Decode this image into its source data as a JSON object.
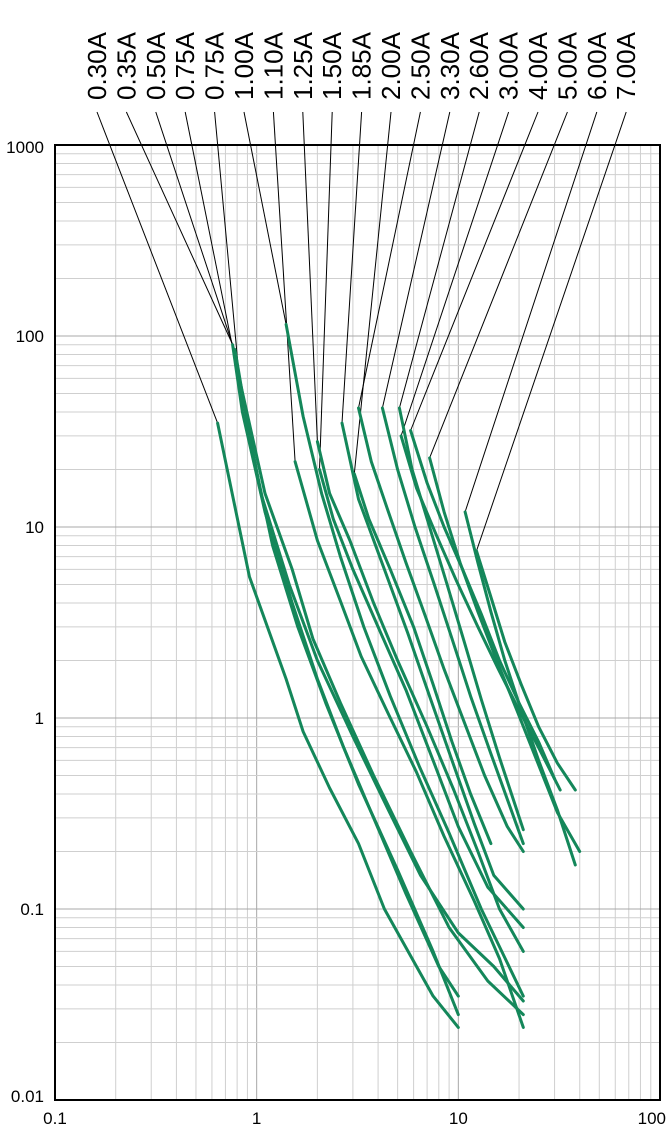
{
  "chart_data": {
    "type": "line",
    "title": "",
    "xlabel": "",
    "ylabel": "",
    "xscale": "log",
    "yscale": "log",
    "xlim": [
      0.1,
      100
    ],
    "ylim": [
      0.01,
      1000
    ],
    "grid": true,
    "x_tick_labels": [
      "0.1",
      "1",
      "10",
      "100"
    ],
    "y_tick_labels": [
      "1000",
      "100",
      "10",
      "1",
      "0.1",
      "0.01"
    ],
    "line_color": "#14875a",
    "leader_color": "#000000",
    "series": [
      {
        "name": "0.30A",
        "points": [
          [
            0.64,
            35
          ],
          [
            0.92,
            5.5
          ],
          [
            1.4,
            1.6
          ],
          [
            1.7,
            0.85
          ],
          [
            2.3,
            0.43
          ],
          [
            3.2,
            0.22
          ],
          [
            4.3,
            0.1
          ],
          [
            7.5,
            0.035
          ],
          [
            10,
            0.024
          ]
        ]
      },
      {
        "name": "0.35A",
        "points": [
          [
            0.78,
            85
          ],
          [
            0.95,
            25
          ],
          [
            1.2,
            8
          ],
          [
            1.6,
            3
          ],
          [
            2.2,
            1.2
          ],
          [
            3.2,
            0.45
          ],
          [
            5,
            0.16
          ],
          [
            7.5,
            0.06
          ],
          [
            10,
            0.028
          ]
        ]
      },
      {
        "name": "0.50A",
        "points": [
          [
            0.76,
            90
          ],
          [
            0.85,
            40
          ],
          [
            1.1,
            12
          ],
          [
            1.5,
            4
          ],
          [
            2,
            1.6
          ],
          [
            2.7,
            0.7
          ],
          [
            3.8,
            0.3
          ],
          [
            5.5,
            0.12
          ],
          [
            8,
            0.05
          ],
          [
            10,
            0.035
          ]
        ]
      },
      {
        "name": "0.75A",
        "points": [
          [
            0.83,
            55
          ],
          [
            1.05,
            15
          ],
          [
            1.45,
            5
          ],
          [
            2,
            2
          ],
          [
            3,
            0.8
          ],
          [
            4.5,
            0.33
          ],
          [
            6.5,
            0.15
          ],
          [
            10,
            0.075
          ],
          [
            15,
            0.05
          ],
          [
            21,
            0.033
          ]
        ]
      },
      {
        "name": "0.75A",
        "points": [
          [
            0.82,
            60
          ],
          [
            1.1,
            15
          ],
          [
            1.5,
            6
          ],
          [
            1.9,
            2.6
          ],
          [
            2.6,
            1.2
          ],
          [
            3.8,
            0.5
          ],
          [
            5.8,
            0.2
          ],
          [
            9,
            0.08
          ],
          [
            14,
            0.042
          ],
          [
            21,
            0.028
          ]
        ]
      },
      {
        "name": "1.00A",
        "points": [
          [
            1.4,
            115
          ],
          [
            1.7,
            38
          ],
          [
            2.1,
            15
          ],
          [
            2.6,
            7
          ],
          [
            3.4,
            3
          ],
          [
            4.6,
            1.3
          ],
          [
            6.4,
            0.56
          ],
          [
            9,
            0.25
          ],
          [
            13,
            0.1
          ],
          [
            21,
            0.035
          ]
        ]
      },
      {
        "name": "1.10A",
        "points": [
          [
            1.55,
            22
          ],
          [
            2,
            8.5
          ],
          [
            2.6,
            4.1
          ],
          [
            3.3,
            2.1
          ],
          [
            4.5,
            1.05
          ],
          [
            6.2,
            0.52
          ],
          [
            8.5,
            0.24
          ],
          [
            12,
            0.11
          ],
          [
            16,
            0.055
          ],
          [
            21,
            0.024
          ]
        ]
      },
      {
        "name": "1.25A",
        "points": [
          [
            2,
            28
          ],
          [
            2.3,
            15
          ],
          [
            2.9,
            8.5
          ],
          [
            3.8,
            4
          ],
          [
            5,
            2
          ],
          [
            7,
            0.9
          ],
          [
            9.5,
            0.42
          ],
          [
            12.5,
            0.2
          ],
          [
            16,
            0.1
          ],
          [
            21,
            0.06
          ]
        ]
      },
      {
        "name": "1.50A",
        "points": [
          [
            2.05,
            20
          ],
          [
            2.4,
            11
          ],
          [
            3,
            6
          ],
          [
            4,
            3
          ],
          [
            5.5,
            1.4
          ],
          [
            7.5,
            0.6
          ],
          [
            10,
            0.27
          ],
          [
            14,
            0.13
          ],
          [
            21,
            0.08
          ]
        ]
      },
      {
        "name": "1.85A",
        "points": [
          [
            2.65,
            35
          ],
          [
            3.2,
            14
          ],
          [
            4.3,
            6
          ],
          [
            5.6,
            2.8
          ],
          [
            7.2,
            1.3
          ],
          [
            9.3,
            0.6
          ],
          [
            12,
            0.28
          ],
          [
            15,
            0.15
          ],
          [
            21,
            0.1
          ]
        ]
      },
      {
        "name": "2.00A",
        "points": [
          [
            3.05,
            19
          ],
          [
            3.6,
            11
          ],
          [
            4.6,
            6
          ],
          [
            6,
            3
          ],
          [
            7.5,
            1.5
          ],
          [
            9.3,
            0.75
          ],
          [
            11.5,
            0.4
          ],
          [
            14.5,
            0.22
          ]
        ]
      },
      {
        "name": "2.50A",
        "points": [
          [
            3.2,
            42
          ],
          [
            3.7,
            22
          ],
          [
            4.5,
            12
          ],
          [
            5.5,
            6.5
          ],
          [
            6.8,
            3.5
          ],
          [
            8.5,
            1.8
          ],
          [
            10.7,
            0.95
          ],
          [
            13.5,
            0.5
          ],
          [
            17.5,
            0.27
          ],
          [
            21,
            0.2
          ]
        ]
      },
      {
        "name": "3.30A",
        "points": [
          [
            4.2,
            42
          ],
          [
            5,
            20
          ],
          [
            6.1,
            10
          ],
          [
            7.6,
            5
          ],
          [
            9.3,
            2.6
          ],
          [
            11.5,
            1.3
          ],
          [
            14.5,
            0.65
          ],
          [
            21,
            0.22
          ]
        ]
      },
      {
        "name": "2.60A",
        "points": [
          [
            5.1,
            42
          ],
          [
            5.9,
            20
          ],
          [
            7.2,
            10
          ],
          [
            8.8,
            5
          ],
          [
            10.7,
            2.5
          ],
          [
            13,
            1.25
          ],
          [
            16,
            0.62
          ],
          [
            21,
            0.26
          ]
        ]
      },
      {
        "name": "3.00A",
        "points": [
          [
            5.2,
            30
          ],
          [
            6.2,
            16
          ],
          [
            7.8,
            9
          ],
          [
            9.8,
            5.2
          ],
          [
            12.5,
            3
          ],
          [
            15.8,
            1.8
          ],
          [
            20,
            1.1
          ],
          [
            25,
            0.7
          ],
          [
            32,
            0.42
          ]
        ]
      },
      {
        "name": "4.00A",
        "points": [
          [
            5.8,
            32
          ],
          [
            7,
            17
          ],
          [
            8.5,
            10
          ],
          [
            10.5,
            6
          ],
          [
            13,
            3.5
          ],
          [
            16,
            2
          ],
          [
            20,
            1.2
          ],
          [
            25,
            0.75
          ],
          [
            30,
            0.48
          ]
        ]
      },
      {
        "name": "5.00A",
        "points": [
          [
            7.2,
            23
          ],
          [
            8.5,
            12
          ],
          [
            10.2,
            6.5
          ],
          [
            12.5,
            3.6
          ],
          [
            15.5,
            2
          ],
          [
            19.5,
            1.1
          ],
          [
            24.5,
            0.6
          ],
          [
            31,
            0.32
          ],
          [
            40,
            0.2
          ]
        ]
      },
      {
        "name": "6.00A",
        "points": [
          [
            10.8,
            12
          ],
          [
            12.5,
            6.5
          ],
          [
            14.5,
            3.6
          ],
          [
            17,
            2
          ],
          [
            20.5,
            1.1
          ],
          [
            25,
            0.6
          ],
          [
            31,
            0.33
          ],
          [
            38,
            0.17
          ]
        ]
      },
      {
        "name": "7.00A",
        "points": [
          [
            12.3,
            7.5
          ],
          [
            14.5,
            4.3
          ],
          [
            17,
            2.5
          ],
          [
            20.5,
            1.5
          ],
          [
            25,
            0.9
          ],
          [
            31,
            0.58
          ],
          [
            38,
            0.42
          ]
        ]
      }
    ]
  }
}
